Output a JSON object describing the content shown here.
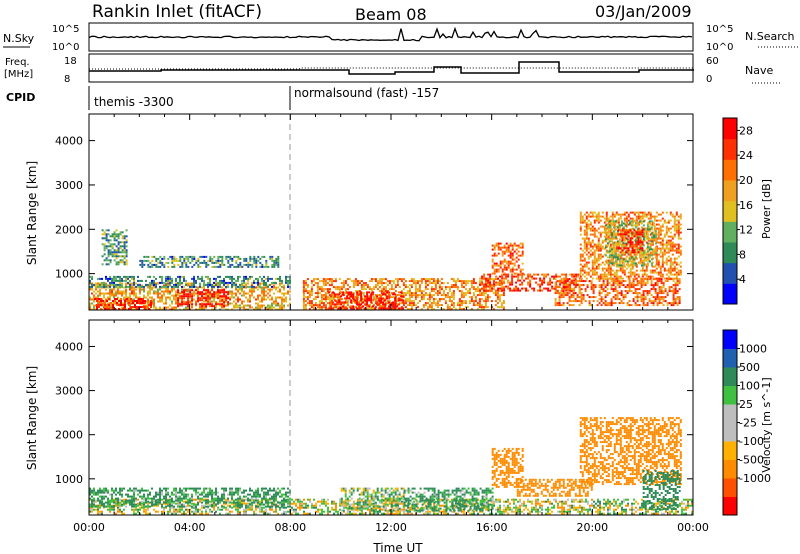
{
  "header": {
    "station": "Rankin Inlet (fitACF)",
    "beam": "Beam 08",
    "date": "03/Jan/2009"
  },
  "strip_labels": {
    "nsky": "N.Sky",
    "nsearch": "N.Search",
    "freq": "Freq.",
    "freq_unit": "[MHz]",
    "nave": "Nave",
    "cpid": "CPID",
    "n_tick_top": "10^5",
    "n_tick_bottom": "10^0",
    "freq_tick_top": "18",
    "freq_tick_bottom": "8",
    "nave_tick_top": "60",
    "nave_tick_bottom": "0"
  },
  "cpid_segments": [
    {
      "label": "themis -3300",
      "start_hour": 0,
      "end_hour": 8
    },
    {
      "label": "normalsound (fast) -157",
      "start_hour": 8,
      "end_hour": 24
    }
  ],
  "colors": {
    "power_scale": [
      "#0000ff",
      "#2050b0",
      "#2e8b57",
      "#60b060",
      "#e0c020",
      "#f0a020",
      "#ff7000",
      "#ff3000",
      "#ff0000"
    ],
    "velocity_scale": [
      "#ff0000",
      "#ff5000",
      "#ff8c00",
      "#ffb000",
      "#bebebe",
      "#bebebe",
      "#40c040",
      "#2e8b57",
      "#2060b0",
      "#0000ff"
    ],
    "ground_scatter": "#bebebe"
  },
  "chart_data": [
    {
      "type": "heatmap",
      "title": "",
      "xlabel": "",
      "ylabel": "Slant Range [km]",
      "xlim_hours": [
        0,
        24
      ],
      "ylim": [
        180,
        4600
      ],
      "y_ticks": [
        "1000",
        "2000",
        "3000",
        "4000"
      ],
      "colorbar_label": "Power [dB]",
      "colorbar_ticks": [
        "4",
        "8",
        "12",
        "16",
        "20",
        "24",
        "28"
      ],
      "colorbar_range": [
        0,
        30
      ],
      "regions": [
        {
          "start_hour": 0.0,
          "end_hour": 8.0,
          "range_min": 200,
          "range_max": 800,
          "value": 18
        },
        {
          "start_hour": 0.2,
          "end_hour": 2.5,
          "range_min": 200,
          "range_max": 450,
          "value": 27
        },
        {
          "start_hour": 3.5,
          "end_hour": 5.5,
          "range_min": 250,
          "range_max": 650,
          "value": 28
        },
        {
          "start_hour": 0.0,
          "end_hour": 8.0,
          "range_min": 700,
          "range_max": 950,
          "value": 8
        },
        {
          "start_hour": 0.5,
          "end_hour": 1.5,
          "range_min": 1200,
          "range_max": 2000,
          "value": 10
        },
        {
          "start_hour": 2.0,
          "end_hour": 7.5,
          "range_min": 1150,
          "range_max": 1400,
          "value": 9
        },
        {
          "start_hour": 8.5,
          "end_hour": 16.5,
          "range_min": 200,
          "range_max": 900,
          "value": 20
        },
        {
          "start_hour": 9.5,
          "end_hour": 12.5,
          "range_min": 200,
          "range_max": 600,
          "value": 28
        },
        {
          "start_hour": 15.5,
          "end_hour": 19.5,
          "range_min": 600,
          "range_max": 1000,
          "value": 25
        },
        {
          "start_hour": 16.0,
          "end_hour": 17.2,
          "range_min": 1000,
          "range_max": 1700,
          "value": 22
        },
        {
          "start_hour": 18.5,
          "end_hour": 23.5,
          "range_min": 300,
          "range_max": 900,
          "value": 22
        },
        {
          "start_hour": 19.5,
          "end_hour": 23.5,
          "range_min": 900,
          "range_max": 2400,
          "value": 20
        },
        {
          "start_hour": 20.5,
          "end_hour": 22.5,
          "range_min": 1200,
          "range_max": 2200,
          "value": 14
        },
        {
          "start_hour": 21.0,
          "end_hour": 22.0,
          "range_min": 1500,
          "range_max": 2000,
          "value": 27
        }
      ]
    },
    {
      "type": "heatmap",
      "title": "",
      "xlabel": "Time UT",
      "ylabel": "Slant Range [km]",
      "xlim_hours": [
        0,
        24
      ],
      "ylim": [
        180,
        4600
      ],
      "y_ticks": [
        "1000",
        "2000",
        "3000",
        "4000"
      ],
      "x_ticks": [
        "00:00",
        "04:00",
        "08:00",
        "12:00",
        "16:00",
        "20:00",
        "00:00"
      ],
      "colorbar_label": "Velocity [m s^-1]",
      "colorbar_ticks": [
        "1000",
        "500",
        "100",
        "25",
        "-25",
        "-100",
        "-500",
        "-1000"
      ],
      "regions": [
        {
          "start_hour": 0.0,
          "end_hour": 24.0,
          "range_min": 200,
          "range_max": 550,
          "value": 0
        },
        {
          "start_hour": 0.0,
          "end_hour": 8.0,
          "range_min": 350,
          "range_max": 800,
          "value": 150
        },
        {
          "start_hour": 10.0,
          "end_hour": 12.5,
          "range_min": 300,
          "range_max": 800,
          "value": 60
        },
        {
          "start_hour": 12.5,
          "end_hour": 16.0,
          "range_min": 300,
          "range_max": 800,
          "value": 150
        },
        {
          "start_hour": 16.0,
          "end_hour": 17.2,
          "range_min": 800,
          "range_max": 1700,
          "value": -300
        },
        {
          "start_hour": 17.0,
          "end_hour": 20.0,
          "range_min": 600,
          "range_max": 1000,
          "value": -250
        },
        {
          "start_hour": 19.5,
          "end_hour": 23.5,
          "range_min": 900,
          "range_max": 2400,
          "value": -300
        },
        {
          "start_hour": 22.0,
          "end_hour": 23.5,
          "range_min": 300,
          "range_max": 1200,
          "value": 300
        }
      ]
    }
  ]
}
